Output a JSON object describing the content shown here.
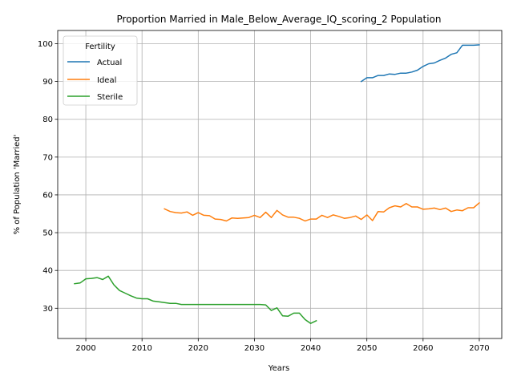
{
  "chart_data": {
    "type": "line",
    "title": "Proportion Married in Male_Below_Average_IQ_scoring_2 Population",
    "xlabel": "Years",
    "ylabel": "% of Population 'Married'",
    "xlim": [
      1995,
      2074
    ],
    "ylim": [
      22,
      103.5
    ],
    "xticks": [
      2000,
      2010,
      2020,
      2030,
      2040,
      2050,
      2060,
      2070
    ],
    "yticks": [
      30,
      40,
      50,
      60,
      70,
      80,
      90,
      100
    ],
    "grid": true,
    "legend": {
      "title": "Fertility",
      "placement": "top-left"
    },
    "series": [
      {
        "name": "Actual",
        "color": "#1f77b4",
        "x": [
          2049,
          2050,
          2051,
          2052,
          2053,
          2054,
          2055,
          2056,
          2057,
          2058,
          2059,
          2060,
          2061,
          2062,
          2063,
          2064,
          2065,
          2066,
          2067,
          2068,
          2069,
          2070
        ],
        "y": [
          90.0,
          91.0,
          91.0,
          91.6,
          91.6,
          92.0,
          91.9,
          92.2,
          92.2,
          92.5,
          93.0,
          94.0,
          94.7,
          94.9,
          95.6,
          96.2,
          97.2,
          97.6,
          99.6,
          99.6,
          99.6,
          99.7
        ]
      },
      {
        "name": "Ideal",
        "color": "#ff7f0e",
        "x": [
          2014,
          2015,
          2016,
          2017,
          2018,
          2019,
          2020,
          2021,
          2022,
          2023,
          2024,
          2025,
          2026,
          2027,
          2028,
          2029,
          2030,
          2031,
          2032,
          2033,
          2034,
          2035,
          2036,
          2037,
          2038,
          2039,
          2040,
          2041,
          2042,
          2043,
          2044,
          2045,
          2046,
          2047,
          2048,
          2049,
          2050,
          2051,
          2052,
          2053,
          2054,
          2055,
          2056,
          2057,
          2058,
          2059,
          2060,
          2061,
          2062,
          2063,
          2064,
          2065,
          2066,
          2067,
          2068,
          2069,
          2070
        ],
        "y": [
          56.3,
          55.6,
          55.3,
          55.2,
          55.5,
          54.6,
          55.3,
          54.6,
          54.5,
          53.6,
          53.5,
          53.1,
          53.9,
          53.8,
          53.9,
          54.0,
          54.6,
          54.0,
          55.4,
          54.0,
          55.9,
          54.7,
          54.1,
          54.1,
          53.8,
          53.1,
          53.6,
          53.6,
          54.6,
          54.0,
          54.7,
          54.3,
          53.8,
          54.0,
          54.4,
          53.5,
          54.7,
          53.2,
          55.6,
          55.5,
          56.6,
          57.1,
          56.8,
          57.7,
          56.8,
          56.8,
          56.2,
          56.3,
          56.5,
          56.1,
          56.5,
          55.6,
          56.0,
          55.8,
          56.6,
          56.6,
          57.9
        ]
      },
      {
        "name": "Sterile",
        "color": "#2ca02c",
        "x": [
          1998,
          1999,
          2000,
          2001,
          2002,
          2003,
          2004,
          2005,
          2006,
          2007,
          2008,
          2009,
          2010,
          2011,
          2012,
          2013,
          2014,
          2015,
          2016,
          2017,
          2018,
          2019,
          2020,
          2021,
          2022,
          2023,
          2024,
          2025,
          2026,
          2027,
          2028,
          2029,
          2030,
          2031,
          2032,
          2033,
          2034,
          2035,
          2036,
          2037,
          2038,
          2039,
          2040,
          2041
        ],
        "y": [
          36.5,
          36.7,
          37.8,
          37.9,
          38.1,
          37.6,
          38.5,
          36.2,
          34.7,
          34.0,
          33.3,
          32.7,
          32.5,
          32.5,
          31.9,
          31.7,
          31.5,
          31.3,
          31.3,
          31.0,
          31.0,
          31.0,
          31.0,
          31.0,
          31.0,
          31.0,
          31.0,
          31.0,
          31.0,
          31.0,
          31.0,
          31.0,
          31.0,
          31.0,
          30.9,
          29.4,
          30.1,
          28.0,
          27.9,
          28.7,
          28.7,
          27.0,
          26.0,
          26.7
        ]
      }
    ]
  }
}
